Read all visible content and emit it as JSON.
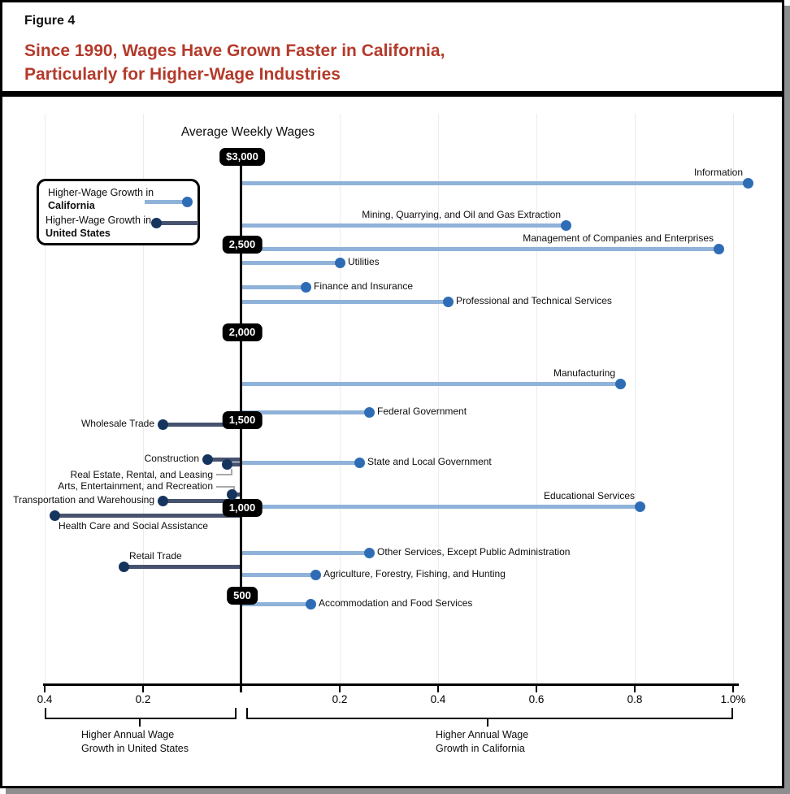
{
  "header": {
    "figure_label": "Figure 4",
    "title_line1": "Since 1990, Wages Have Grown Faster in California,",
    "title_line2": "Particularly for Higher-Wage Industries"
  },
  "legend": {
    "california": {
      "line1": "Higher-Wage Growth in",
      "line2": "California"
    },
    "united_states": {
      "line1": "Higher-Wage Growth in",
      "line2": "United States"
    }
  },
  "colors": {
    "title_red": "#b43a2b",
    "california_bar": "#8fb2d9",
    "california_dot": "#2e6db5",
    "us_bar": "#47536e",
    "us_dot": "#16355e",
    "badge_bg": "#000000",
    "gridline": "#ececec"
  },
  "chart_data": {
    "type": "bar",
    "subtype": "horizontal-lollipop-diverging",
    "title": "Since 1990, Wages Have Grown Faster in California, Particularly for Higher-Wage Industries",
    "grid": "faint vertical gridlines at each x tick",
    "y_axis": {
      "title": "Average Weekly Wages",
      "tick_labels": [
        "$3,000",
        "2,500",
        "2,000",
        "1,500",
        "1,000",
        "500"
      ],
      "tick_values": [
        3000,
        2500,
        2000,
        1500,
        1000,
        500
      ]
    },
    "x_axis": {
      "unit": "percentage points of annual wage growth difference",
      "range": [
        -0.4,
        1.0
      ],
      "ticks": [
        {
          "v": -0.4,
          "label": "0.4"
        },
        {
          "v": -0.2,
          "label": "0.2"
        },
        {
          "v": 0.2,
          "label": "0.2"
        },
        {
          "v": 0.4,
          "label": "0.4"
        },
        {
          "v": 0.6,
          "label": "0.6"
        },
        {
          "v": 0.8,
          "label": "0.8"
        },
        {
          "v": 1.0,
          "label": "1.0%"
        }
      ],
      "left_region_label": [
        "Higher Annual Wage",
        "Growth in United States"
      ],
      "right_region_label": [
        "Higher Annual Wage",
        "Growth in California"
      ]
    },
    "series_note": "x = wage-growth difference since 1990 (positive = California grew faster, negative = United States grew faster); wage = approximate average weekly wage read from vertical position",
    "points": [
      {
        "label": "Information",
        "x": 1.03,
        "wage": 2850,
        "placement": "above"
      },
      {
        "label": "Mining, Quarrying, and Oil and Gas Extraction",
        "x": 0.66,
        "wage": 2610,
        "placement": "above"
      },
      {
        "label": "Management of Companies and Enterprises",
        "x": 0.97,
        "wage": 2475,
        "placement": "above"
      },
      {
        "label": "Utilities",
        "x": 0.2,
        "wage": 2400,
        "placement": "right"
      },
      {
        "label": "Finance and Insurance",
        "x": 0.13,
        "wage": 2260,
        "placement": "right"
      },
      {
        "label": "Professional and Technical Services",
        "x": 0.42,
        "wage": 2175,
        "placement": "right"
      },
      {
        "label": "Manufacturing",
        "x": 0.77,
        "wage": 1710,
        "placement": "above"
      },
      {
        "label": "Federal Government",
        "x": 0.26,
        "wage": 1545,
        "placement": "right"
      },
      {
        "label": "Wholesale Trade",
        "x": -0.16,
        "wage": 1475,
        "placement": "left"
      },
      {
        "label": "Construction",
        "x": -0.07,
        "wage": 1280,
        "placement": "left"
      },
      {
        "label": "State and Local Government",
        "x": 0.24,
        "wage": 1257,
        "placement": "right"
      },
      {
        "label": "Real Estate, Rental, and Leasing",
        "x": -0.03,
        "wage": 1248,
        "placement": "connector-up"
      },
      {
        "label": "Arts, Entertainment, and Recreation",
        "x": -0.02,
        "wage": 1080,
        "placement": "connector-down"
      },
      {
        "label": "Transportation and Warehousing",
        "x": -0.16,
        "wage": 1040,
        "placement": "left"
      },
      {
        "label": "Educational Services",
        "x": 0.81,
        "wage": 1010,
        "placement": "above"
      },
      {
        "label": "Health Care and Social Assistance",
        "x": -0.38,
        "wage": 958,
        "placement": "below-right"
      },
      {
        "label": "Other Services, Except Public Administration",
        "x": 0.26,
        "wage": 745,
        "placement": "right"
      },
      {
        "label": "Retail Trade",
        "x": -0.24,
        "wage": 668,
        "placement": "above-right"
      },
      {
        "label": "Agriculture, Forestry, Fishing, and Hunting",
        "x": 0.15,
        "wage": 620,
        "placement": "right"
      },
      {
        "label": "Accommodation and Food Services",
        "x": 0.14,
        "wage": 455,
        "placement": "right"
      }
    ]
  }
}
